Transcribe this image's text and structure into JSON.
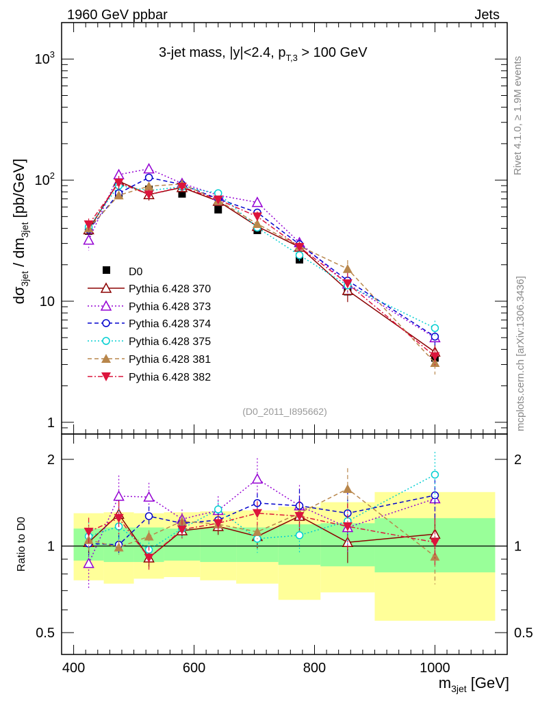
{
  "header": {
    "left": "1960 GeV ppbar",
    "right": "Jets"
  },
  "side_labels": {
    "rivet": "Rivet 4.1.0, ≥ 1.9M events",
    "mcplots": "mcplots.cern.ch [arXiv:1306.3436]"
  },
  "chart_data": [
    {
      "type": "scatter",
      "panel": "main",
      "title": "3-jet mass, |y|<2.4, p_T,3 > 100 GeV",
      "title_parts": {
        "main": "3-jet mass, |y|<2.4, p",
        "sub": "T,3",
        "tail": " > 100 GeV"
      },
      "analysis_tag": "(D0_2011_I895662)",
      "ylabel": "dσ_3jet / dm_3jet [pb/GeV]",
      "ylabel_parts": {
        "a": "dσ",
        "a_sub": "3jet",
        "b": " / dm",
        "b_sub": "3jet",
        "c": " [pb/GeV]"
      },
      "xlabel": "m_3jet [GeV]",
      "xlabel_parts": {
        "a": "m",
        "a_sub": "3jet",
        "b": " [GeV]"
      },
      "yscale": "log",
      "ylim": [
        0.8,
        2000
      ],
      "xlim": [
        380,
        1120
      ],
      "yticks": [
        {
          "v": 1,
          "label": "1"
        },
        {
          "v": 10,
          "label": "10"
        },
        {
          "v": 100,
          "label": "10",
          "sup": "2"
        },
        {
          "v": 1000,
          "label": "10",
          "sup": "3"
        }
      ],
      "x": [
        425,
        475,
        525,
        580,
        640,
        705,
        775,
        855,
        1000
      ],
      "x_bins": [
        400,
        450,
        500,
        550,
        610,
        670,
        740,
        810,
        900,
        1100
      ],
      "series": [
        {
          "name": "D0",
          "color": "#000000",
          "marker": "square",
          "line": "none",
          "values": [
            38,
            76,
            84,
            77,
            57,
            38.5,
            22,
            12,
            3.4
          ]
        },
        {
          "name": "Pythia 6.428 370",
          "color": "#8b0000",
          "marker": "triangle-up-open",
          "line": "solid",
          "values": [
            39,
            98,
            76,
            87,
            67,
            41.5,
            28,
            12.3,
            3.8
          ],
          "errors": [
            0.1,
            0.18,
            0.12,
            0.07,
            0.07,
            0.07,
            0.08,
            0.25,
            0.15
          ]
        },
        {
          "name": "Pythia 6.428 373",
          "color": "#9400d3",
          "marker": "triangle-up-open",
          "line": "dotted",
          "values": [
            32,
            111,
            124,
            94,
            75,
            65.5,
            30.5,
            13.9,
            5.0
          ],
          "errors": [
            0.22,
            0.1,
            0.08,
            0.06,
            0.08,
            0.1,
            0.1,
            0.2,
            0.15
          ]
        },
        {
          "name": "Pythia 6.428 374",
          "color": "#0000cd",
          "marker": "circle-open",
          "line": "dashed",
          "values": [
            39,
            78,
            105,
            92,
            70,
            54,
            29.5,
            14.8,
            5.1
          ],
          "errors": [
            0.1,
            0.08,
            0.07,
            0.05,
            0.06,
            0.07,
            0.1,
            0.2,
            0.18
          ]
        },
        {
          "name": "Pythia 6.428 375",
          "color": "#00ced1",
          "marker": "circle-open",
          "line": "dotted",
          "values": [
            41,
            90,
            82,
            88,
            78,
            40.5,
            24,
            13.5,
            6.0
          ],
          "errors": [
            0.12,
            0.12,
            0.1,
            0.07,
            0.06,
            0.1,
            0.12,
            0.18,
            0.15
          ]
        },
        {
          "name": "Pythia 6.428 381",
          "color": "#b8864b",
          "marker": "triangle-up-filled",
          "line": "dashed",
          "values": [
            40,
            75,
            89,
            93,
            68,
            43.5,
            28.5,
            18.5,
            3.1
          ],
          "errors": [
            0.12,
            0.06,
            0.05,
            0.05,
            0.05,
            0.06,
            0.07,
            0.18,
            0.25
          ]
        },
        {
          "name": "Pythia 6.428 382",
          "color": "#dc143c",
          "marker": "triangle-down-filled",
          "line": "dashdot",
          "values": [
            43,
            95,
            76,
            88,
            69,
            50,
            28,
            14,
            3.5
          ],
          "errors": [
            0.12,
            0.14,
            0.1,
            0.08,
            0.07,
            0.1,
            0.1,
            0.22,
            0.2
          ]
        }
      ]
    },
    {
      "type": "scatter",
      "panel": "ratio",
      "ylabel": "Ratio to D0",
      "xlabel": "m_3jet [GeV]",
      "yscale": "log",
      "ylim": [
        0.42,
        2.45
      ],
      "xlim": [
        380,
        1120
      ],
      "yticks": [
        {
          "v": 0.5,
          "label": "0.5"
        },
        {
          "v": 1,
          "label": "1"
        },
        {
          "v": 2,
          "label": "2"
        }
      ],
      "xticks": [
        {
          "v": 400,
          "label": "400"
        },
        {
          "v": 600,
          "label": "600"
        },
        {
          "v": 800,
          "label": "800"
        },
        {
          "v": 1000,
          "label": "1000"
        }
      ],
      "x": [
        425,
        475,
        525,
        580,
        640,
        705,
        775,
        855,
        1000
      ],
      "x_bins": [
        400,
        450,
        500,
        550,
        610,
        670,
        740,
        810,
        900,
        1100
      ],
      "band_inner": [
        [
          0.89,
          1.15
        ],
        [
          0.88,
          1.16
        ],
        [
          0.88,
          1.16
        ],
        [
          0.89,
          1.15
        ],
        [
          0.88,
          1.16
        ],
        [
          0.88,
          1.16
        ],
        [
          0.86,
          1.19
        ],
        [
          0.85,
          1.2
        ],
        [
          0.81,
          1.25
        ]
      ],
      "band_outer": [
        [
          0.76,
          1.3
        ],
        [
          0.74,
          1.31
        ],
        [
          0.77,
          1.3
        ],
        [
          0.78,
          1.31
        ],
        [
          0.76,
          1.32
        ],
        [
          0.74,
          1.33
        ],
        [
          0.65,
          1.37
        ],
        [
          0.69,
          1.42
        ],
        [
          0.55,
          1.54
        ]
      ],
      "reference_line": 1.0,
      "series": [
        {
          "name": "Pythia 6.428 370",
          "values": [
            1.03,
            1.29,
            0.91,
            1.13,
            1.17,
            1.08,
            1.27,
            1.03,
            1.1
          ],
          "errors": [
            0.1,
            0.14,
            0.08,
            0.06,
            0.07,
            0.1,
            0.15,
            0.18,
            0.18
          ]
        },
        {
          "name": "Pythia 6.428 373",
          "values": [
            0.87,
            1.49,
            1.48,
            1.24,
            1.33,
            1.71,
            1.38,
            1.16,
            1.46
          ],
          "errors": [
            0.22,
            0.18,
            0.12,
            0.08,
            0.12,
            0.18,
            0.18,
            0.22,
            0.2
          ]
        },
        {
          "name": "Pythia 6.428 374",
          "values": [
            1.02,
            1.01,
            1.27,
            1.2,
            1.23,
            1.41,
            1.38,
            1.3,
            1.5
          ],
          "errors": [
            0.1,
            0.08,
            0.08,
            0.06,
            0.07,
            0.08,
            0.14,
            0.2,
            0.2
          ]
        },
        {
          "name": "Pythia 6.428 375",
          "values": [
            1.08,
            1.17,
            0.97,
            1.15,
            1.34,
            1.06,
            1.09,
            1.22,
            1.77
          ],
          "errors": [
            0.12,
            0.14,
            0.12,
            0.08,
            0.07,
            0.12,
            0.16,
            0.2,
            0.2
          ]
        },
        {
          "name": "Pythia 6.428 381",
          "values": [
            1.05,
            0.99,
            1.08,
            1.22,
            1.19,
            1.12,
            1.3,
            1.58,
            0.92
          ],
          "errors": [
            0.12,
            0.06,
            0.05,
            0.05,
            0.05,
            0.06,
            0.07,
            0.18,
            0.25
          ]
        },
        {
          "name": "Pythia 6.428 382",
          "values": [
            1.12,
            1.25,
            0.91,
            1.14,
            1.2,
            1.3,
            1.27,
            1.17,
            1.03
          ],
          "errors": [
            0.12,
            0.14,
            0.1,
            0.08,
            0.07,
            0.1,
            0.12,
            0.2,
            0.2
          ]
        }
      ]
    }
  ]
}
